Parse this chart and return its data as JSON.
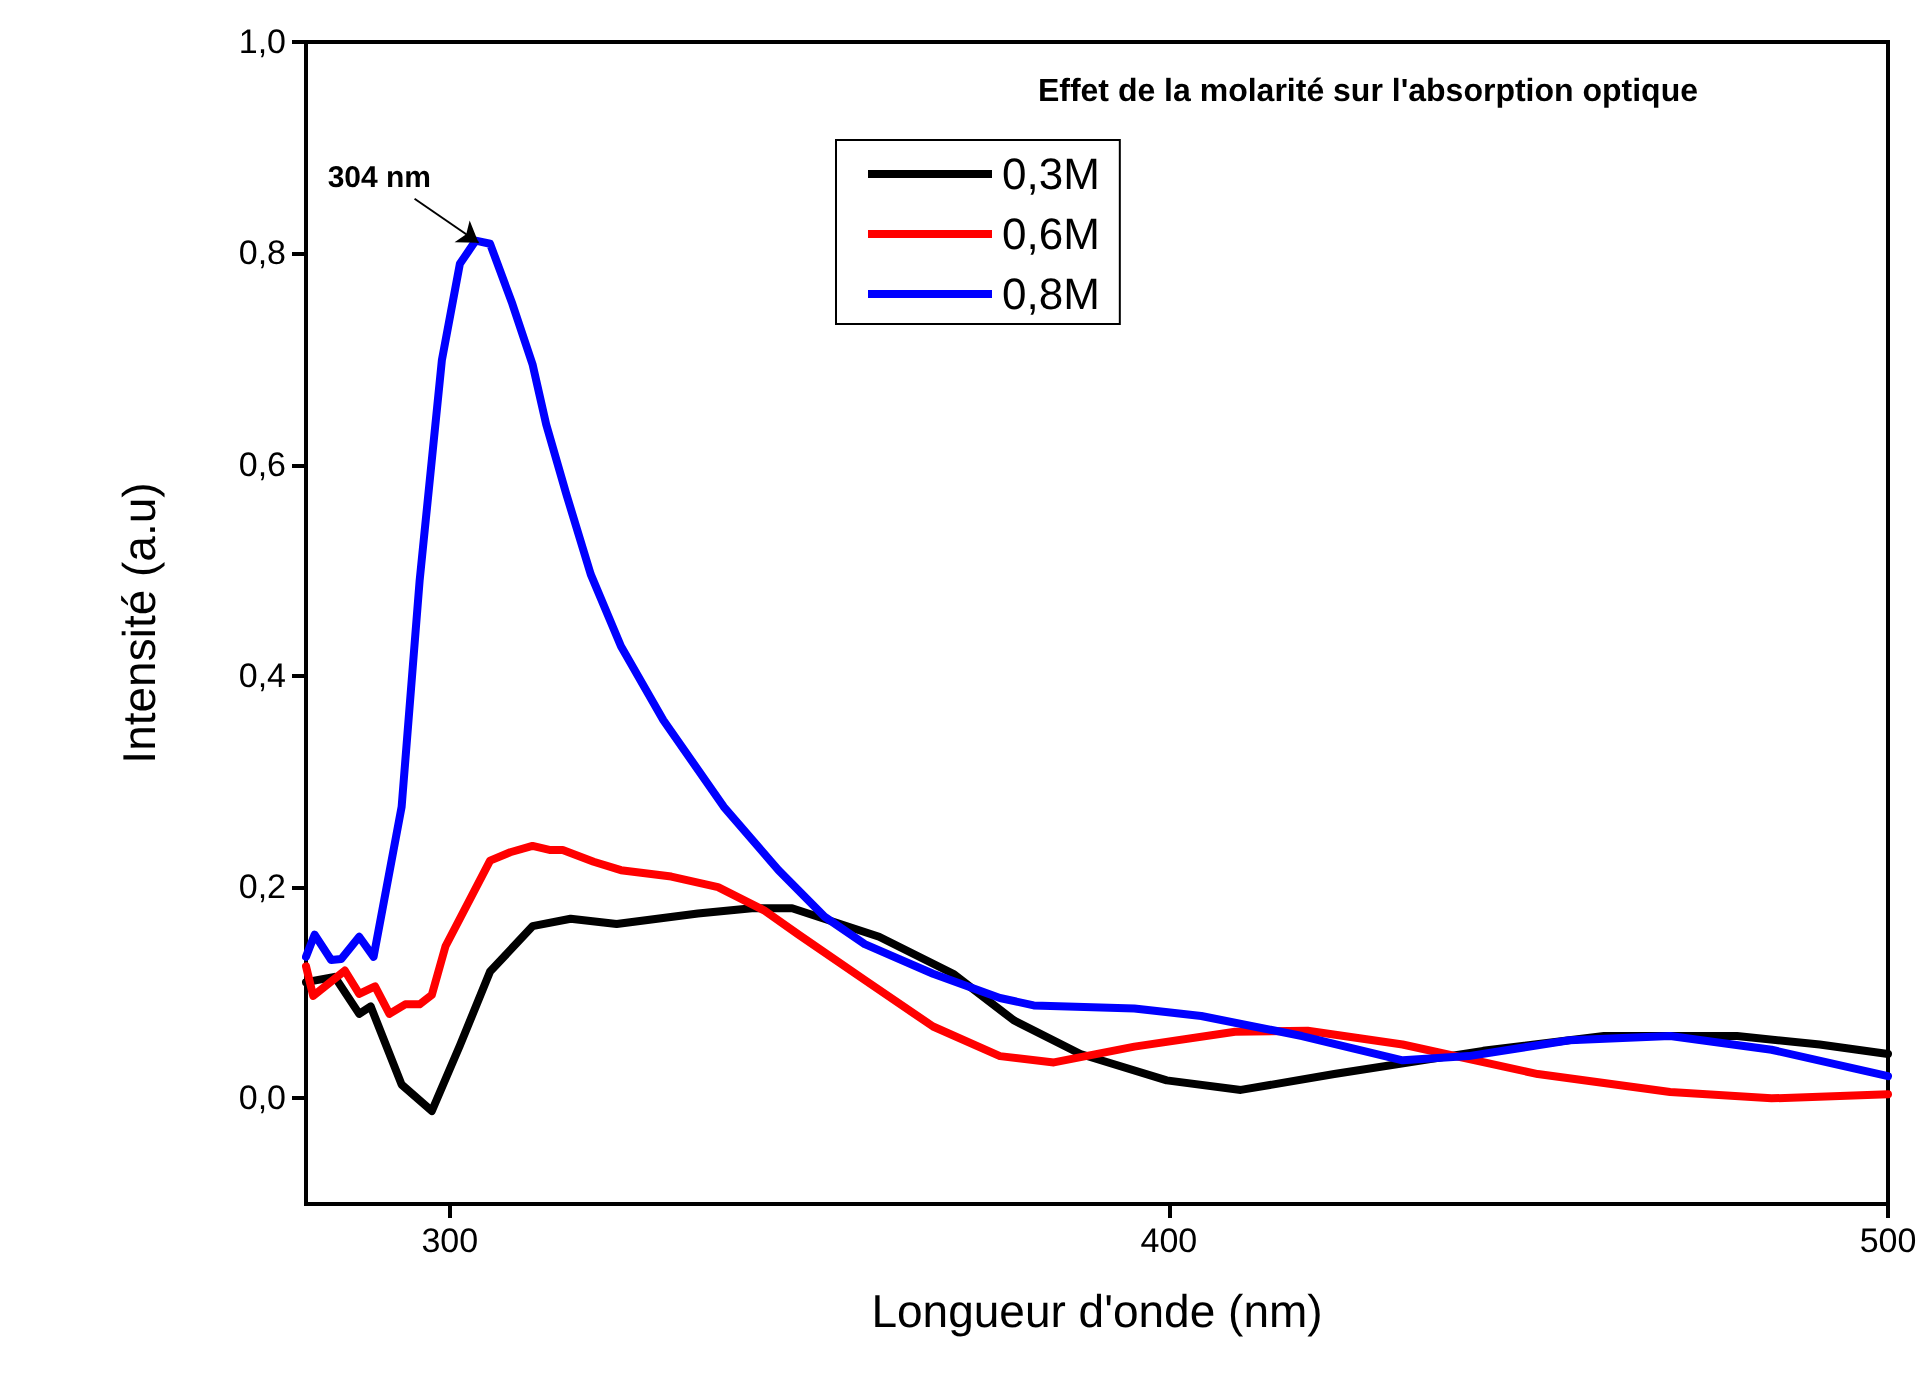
{
  "chart_data": {
    "type": "line",
    "title": "Effet de la molarité sur l'absorption optique",
    "xlabel": "Longueur d'onde (nm)",
    "ylabel": "Intensité (a.u)",
    "annotations": [
      {
        "text": "304 nm",
        "x": 304,
        "y": 0.81
      }
    ],
    "xlim": [
      280,
      500
    ],
    "xticks": [
      300,
      400,
      500
    ],
    "ylim": [
      -0.1,
      1.0
    ],
    "yticks": [
      {
        "value": 0,
        "label": "0,0"
      },
      {
        "value": 0.2,
        "label": "0,2"
      },
      {
        "value": 0.4,
        "label": "0,4"
      },
      {
        "value": 0.6,
        "label": "0,6"
      },
      {
        "value": 0.8,
        "label": "0,8"
      },
      {
        "value": 1.0,
        "label": "1,0"
      }
    ],
    "grid": false,
    "legend": "top",
    "marker": "none",
    "line_style": "solid",
    "series": [
      {
        "name": "0,3M",
        "color": "#000000",
        "x": [
          280,
          284,
          287.4,
          289,
          293.3,
          297.5,
          301.4,
          305.6,
          311.5,
          316.8,
          323.2,
          334.5,
          342,
          347.6,
          359.7,
          370,
          378.4,
          387.7,
          399.7,
          410,
          423,
          443.7,
          460.5,
          479,
          490.5,
          500
        ],
        "values": [
          0.11,
          0.115,
          0.08,
          0.087,
          0.013,
          -0.012,
          0.05,
          0.12,
          0.163,
          0.17,
          0.165,
          0.175,
          0.18,
          0.18,
          0.153,
          0.118,
          0.074,
          0.042,
          0.017,
          0.008,
          0.023,
          0.045,
          0.059,
          0.059,
          0.051,
          0.042
        ]
      },
      {
        "name": "0,6M",
        "color": "#ff0000",
        "x": [
          280,
          281,
          285.4,
          287.4,
          289.6,
          291.6,
          293.8,
          295.8,
          297.5,
          299.4,
          305.6,
          308.4,
          311.5,
          314,
          315.7,
          320,
          323.8,
          330.8,
          337.3,
          343.7,
          348.5,
          357.7,
          367.2,
          376.5,
          384,
          395.2,
          409.2,
          419.3,
          432.5,
          451.3,
          469.7,
          483.8,
          500
        ],
        "values": [
          0.125,
          0.097,
          0.121,
          0.099,
          0.106,
          0.08,
          0.089,
          0.089,
          0.098,
          0.144,
          0.225,
          0.233,
          0.239,
          0.235,
          0.235,
          0.224,
          0.216,
          0.21,
          0.2,
          0.178,
          0.155,
          0.112,
          0.068,
          0.04,
          0.034,
          0.049,
          0.063,
          0.064,
          0.051,
          0.023,
          0.006,
          0,
          0.004
        ]
      },
      {
        "name": "0,8M",
        "color": "#0000ff",
        "x": [
          280,
          281.2,
          283.5,
          284.9,
          287.4,
          289.4,
          293.3,
          295.8,
          298.9,
          301.4,
          303.6,
          305.6,
          308.7,
          311.5,
          313.4,
          316.2,
          319.6,
          323.8,
          329.7,
          338.1,
          345.7,
          352.1,
          357.7,
          367.2,
          376.5,
          381.2,
          395.2,
          404.5,
          418.5,
          432.5,
          441.7,
          455.7,
          469.7,
          483.8,
          500
        ],
        "values": [
          0.134,
          0.155,
          0.131,
          0.132,
          0.153,
          0.134,
          0.276,
          0.49,
          0.699,
          0.79,
          0.812,
          0.809,
          0.752,
          0.695,
          0.638,
          0.572,
          0.496,
          0.428,
          0.358,
          0.276,
          0.216,
          0.172,
          0.146,
          0.118,
          0.095,
          0.088,
          0.085,
          0.078,
          0.059,
          0.036,
          0.04,
          0.055,
          0.059,
          0.046,
          0.021
        ]
      }
    ]
  }
}
